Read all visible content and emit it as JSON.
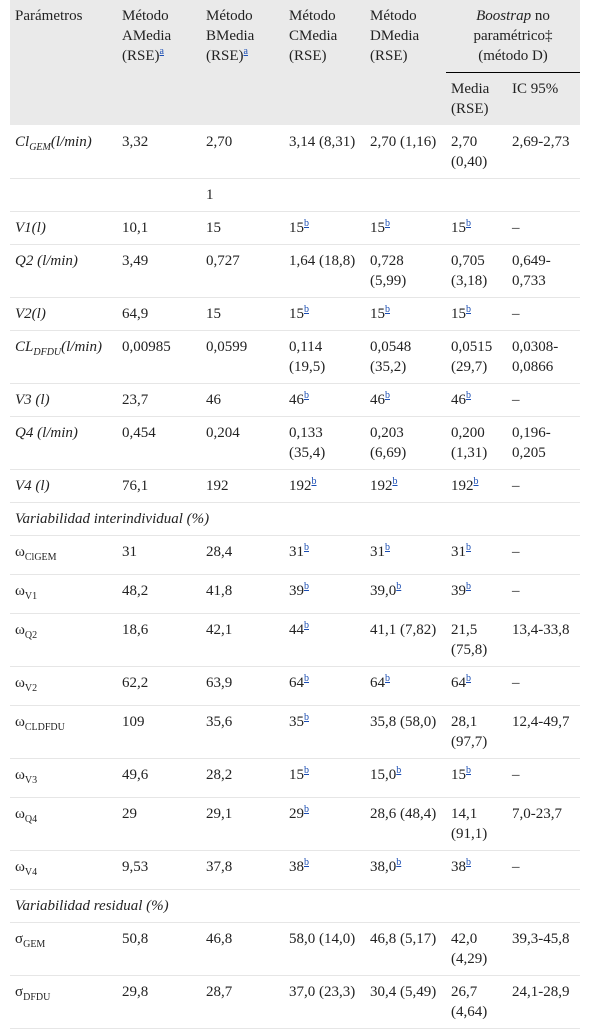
{
  "header": {
    "parametros": "Parámetros",
    "metodo_a": [
      "Método",
      "AMedia",
      "(RSE)"
    ],
    "metodo_b": [
      "Método",
      "BMedia",
      "(RSE)"
    ],
    "metodo_c": [
      "Método",
      "CMedia",
      "(RSE)"
    ],
    "metodo_d": [
      "Método",
      "DMedia",
      "(RSE)"
    ],
    "footnote_a": "a",
    "bootstrap_italic": "Boostrap",
    "bootstrap_rest": " no paramétrico‡ (método D)",
    "media": "Media (RSE)",
    "ic": "IC 95%"
  },
  "rows": [
    {
      "p": "Cl",
      "sub": "GEM",
      "suffix": "(l/min)",
      "a": "3,32",
      "b": "2,70",
      "c": "3,14 (8,31)",
      "d": "2,70 (1,16)",
      "m": "2,70 (0,40)",
      "ic": "2,69-2,73"
    },
    {
      "p": "",
      "sub": "",
      "suffix": "",
      "a": "",
      "b": "1",
      "c": "",
      "d": "",
      "m": "",
      "ic": ""
    },
    {
      "p": "V1(l)",
      "a": "10,1",
      "b": "15",
      "c": "15",
      "cb": "b",
      "d": "15",
      "db": "b",
      "m": "15",
      "mb": "b",
      "ic": "–"
    },
    {
      "p": "Q2 (l/min)",
      "a": "3,49",
      "b": "0,727",
      "c": "1,64 (18,8)",
      "d": "0,728 (5,99)",
      "m": "0,705 (3,18)",
      "ic": "0,649-0,733"
    },
    {
      "p": "V2(l)",
      "a": "64,9",
      "b": "15",
      "c": "15",
      "cb": "b",
      "d": "15",
      "db": "b",
      "m": "15",
      "mb": "b",
      "ic": "–"
    },
    {
      "p": "CL",
      "sub": "DFDU",
      "suffix": "(l/min)",
      "a": "0,00985",
      "b": "0,0599",
      "c": "0,114 (19,5)",
      "d": "0,0548 (35,2)",
      "m": "0,0515 (29,7)",
      "ic": "0,0308-0,0866"
    },
    {
      "p": "V3 (l)",
      "a": "23,7",
      "b": "46",
      "c": "46",
      "cb": "b",
      "d": "46",
      "db": "b",
      "m": "46",
      "mb": "b",
      "ic": "–"
    },
    {
      "p": "Q4 (l/min)",
      "a": "0,454",
      "b": "0,204",
      "c": "0,133 (35,4)",
      "d": "0,203 (6,69)",
      "m": "0,200 (1,31)",
      "ic": "0,196-0,205"
    },
    {
      "p": "V4 (l)",
      "a": "76,1",
      "b": "192",
      "c": "192",
      "cb": "b",
      "d": "192",
      "db": "b",
      "m": "192",
      "mb": "b",
      "ic": "–"
    }
  ],
  "section_inter": "Variabilidad interindividual (%)",
  "omega": "ω",
  "inter_rows": [
    {
      "sub": "ClGEM",
      "a": "31",
      "b": "28,4",
      "c": "31",
      "cb": "b",
      "d": "31",
      "db": "b",
      "m": "31",
      "mb": "b",
      "ic": "–"
    },
    {
      "sub": "V1",
      "a": "48,2",
      "b": "41,8",
      "c": "39",
      "cb": "b",
      "d": "39,0",
      "db": "b",
      "m": "39",
      "mb": "b",
      "ic": "–"
    },
    {
      "sub": "Q2",
      "a": "18,6",
      "b": "42,1",
      "c": "44",
      "cb": "b",
      "d": "41,1 (7,82)",
      "m": "21,5 (75,8)",
      "ic": "13,4-33,8"
    },
    {
      "sub": "V2",
      "a": "62,2",
      "b": "63,9",
      "c": "64",
      "cb": "b",
      "d": "64",
      "db": "b",
      "m": "64",
      "mb": "b",
      "ic": "–"
    },
    {
      "sub": "CLDFDU",
      "a": "109",
      "b": "35,6",
      "c": "35",
      "cb": "b",
      "d": "35,8 (58,0)",
      "m": "28,1 (97,7)",
      "ic": "12,4-49,7"
    },
    {
      "sub": "V3",
      "a": "49,6",
      "b": "28,2",
      "c": "15",
      "cb": "b",
      "d": "15,0",
      "db": "b",
      "m": "15",
      "mb": "b",
      "ic": "–"
    },
    {
      "sub": "Q4",
      "a": "29",
      "b": "29,1",
      "c": "29",
      "cb": "b",
      "d": "28,6 (48,4)",
      "m": "14,1 (91,1)",
      "ic": "7,0-23,7"
    },
    {
      "sub": "V4",
      "a": "9,53",
      "b": "37,8",
      "c": "38",
      "cb": "b",
      "d": "38,0",
      "db": "b",
      "m": "38",
      "mb": "b",
      "ic": "–"
    }
  ],
  "section_resid": "Variabilidad residual (%)",
  "sigma": "σ",
  "resid_rows": [
    {
      "sub": "GEM",
      "a": "50,8",
      "b": "46,8",
      "c": "58,0 (14,0)",
      "d": "46,8 (5,17)",
      "m": "42,0 (4,29)",
      "ic": "39,3-45,8"
    },
    {
      "sub": "DFDU",
      "a": "29,8",
      "b": "28,7",
      "c": "37,0 (23,3)",
      "d": "30,4 (5,49)",
      "m": "26,7 (4,64)",
      "ic": "24,1-28,9"
    }
  ]
}
